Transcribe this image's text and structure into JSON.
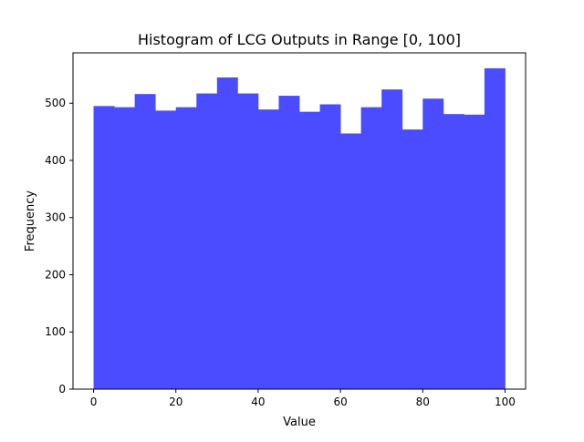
{
  "chart_data": {
    "type": "bar",
    "title": "Histogram of LCG Outputs in Range [0, 100]",
    "xlabel": "Value",
    "ylabel": "Frequency",
    "xlim": [
      -5,
      105
    ],
    "ylim": [
      0,
      588
    ],
    "xticks": [
      0,
      20,
      40,
      60,
      80,
      100
    ],
    "yticks": [
      0,
      100,
      200,
      300,
      400,
      500
    ],
    "bin_edges": [
      0,
      5,
      10,
      15,
      20,
      25,
      30,
      35,
      40,
      45,
      50,
      55,
      60,
      65,
      70,
      75,
      80,
      85,
      90,
      95,
      100
    ],
    "values": [
      495,
      493,
      516,
      487,
      493,
      517,
      545,
      517,
      489,
      513,
      485,
      498,
      447,
      493,
      524,
      454,
      508,
      481,
      480,
      561
    ],
    "bar_color": "#4b4bff",
    "grid": false,
    "legend": "none"
  }
}
